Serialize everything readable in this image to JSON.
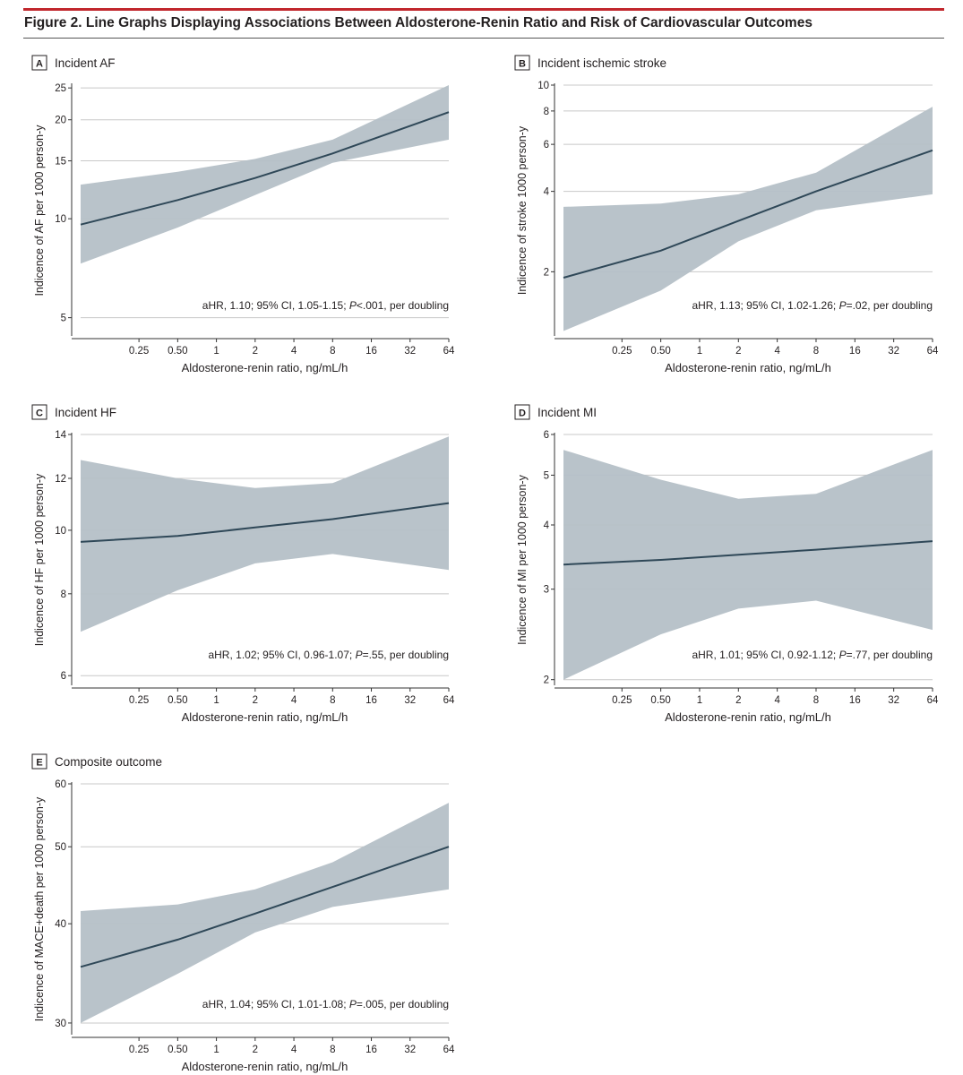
{
  "figure": {
    "title": "Figure 2. Line Graphs Displaying Associations Between Aldosterone-Renin Ratio and Risk of Cardiovascular Outcomes"
  },
  "colors": {
    "line": "#2f4858",
    "band": "#b5c0c7",
    "grid": "#c8c8c8",
    "accent_rule": "#c1272d"
  },
  "chart_data": [
    {
      "type": "line",
      "panel_letter": "A",
      "title": "Incident AF",
      "xlabel": "Aldosterone-renin ratio, ng/mL/h",
      "ylabel": "Indicence of AF per 1000 person-y",
      "x_scale": "log2",
      "y_scale": "log",
      "x_ticks": [
        0.25,
        0.5,
        1,
        2,
        4,
        8,
        16,
        32,
        64
      ],
      "x_tick_labels": [
        "0.25",
        "0.50",
        "1",
        "2",
        "4",
        "8",
        "16",
        "32",
        "64"
      ],
      "xlim": [
        0.088,
        64
      ],
      "y_ticks": [
        5,
        10,
        15,
        20,
        25
      ],
      "y_tick_labels": [
        "5",
        "10",
        "15",
        "20",
        "25"
      ],
      "ylim": [
        4.4,
        25.5
      ],
      "annotation": {
        "pre": "aHR, 1.10; 95% CI, 1.05-1.15; ",
        "p": "P",
        "post": "<.001, per doubling"
      },
      "x": [
        0.088,
        0.5,
        2,
        8,
        64
      ],
      "estimate": [
        9.6,
        11.4,
        13.3,
        15.8,
        21.1
      ],
      "ci_lower": [
        7.3,
        9.4,
        11.8,
        14.8,
        17.4
      ],
      "ci_upper": [
        12.7,
        13.9,
        15.2,
        17.4,
        25.5
      ]
    },
    {
      "type": "line",
      "panel_letter": "B",
      "title": "Incident ischemic stroke",
      "xlabel": "Aldosterone-renin ratio, ng/mL/h",
      "ylabel": "Indicence of stroke 1000 person-y",
      "x_scale": "log2",
      "y_scale": "log",
      "x_ticks": [
        0.25,
        0.5,
        1,
        2,
        4,
        8,
        16,
        32,
        64
      ],
      "x_tick_labels": [
        "0.25",
        "0.50",
        "1",
        "2",
        "4",
        "8",
        "16",
        "32",
        "64"
      ],
      "xlim": [
        0.088,
        64
      ],
      "y_ticks": [
        2,
        4,
        6,
        8,
        10
      ],
      "y_tick_labels": [
        "2",
        "4",
        "6",
        "8",
        "10"
      ],
      "ylim": [
        1.15,
        10
      ],
      "annotation": {
        "pre": "aHR, 1.13; 95% CI, 1.02-1.26; ",
        "p": "P",
        "post": "=.02, per doubling"
      },
      "x": [
        0.088,
        0.5,
        2,
        8,
        64
      ],
      "estimate": [
        1.9,
        2.4,
        3.1,
        4.0,
        5.7
      ],
      "ci_lower": [
        1.2,
        1.7,
        2.6,
        3.4,
        3.9
      ],
      "ci_upper": [
        3.5,
        3.6,
        3.9,
        4.7,
        8.3
      ]
    },
    {
      "type": "line",
      "panel_letter": "C",
      "title": "Incident HF",
      "xlabel": "Aldosterone-renin ratio, ng/mL/h",
      "ylabel": "Indicence of HF per 1000 person-y",
      "x_scale": "log2",
      "y_scale": "log",
      "x_ticks": [
        0.25,
        0.5,
        1,
        2,
        4,
        8,
        16,
        32,
        64
      ],
      "x_tick_labels": [
        "0.25",
        "0.50",
        "1",
        "2",
        "4",
        "8",
        "16",
        "32",
        "64"
      ],
      "xlim": [
        0.088,
        64
      ],
      "y_ticks": [
        6,
        8,
        10,
        12,
        14
      ],
      "y_tick_labels": [
        "6",
        "8",
        "10",
        "12",
        "14"
      ],
      "ylim": [
        5.8,
        14
      ],
      "annotation": {
        "pre": "aHR, 1.02; 95% CI, 0.96-1.07; ",
        "p": "P",
        "post": "=.55, per doubling"
      },
      "x": [
        0.088,
        0.5,
        2,
        8,
        64
      ],
      "estimate": [
        9.6,
        9.8,
        10.1,
        10.4,
        11.0
      ],
      "ci_lower": [
        7.0,
        8.1,
        8.9,
        9.2,
        8.7
      ],
      "ci_upper": [
        12.8,
        12.0,
        11.6,
        11.8,
        13.9
      ]
    },
    {
      "type": "line",
      "panel_letter": "D",
      "title": "Incident MI",
      "xlabel": "Aldosterone-renin ratio, ng/mL/h",
      "ylabel": "Indicence of MI per 1000 person-y",
      "x_scale": "log2",
      "y_scale": "log",
      "x_ticks": [
        0.25,
        0.5,
        1,
        2,
        4,
        8,
        16,
        32,
        64
      ],
      "x_tick_labels": [
        "0.25",
        "0.50",
        "1",
        "2",
        "4",
        "8",
        "16",
        "32",
        "64"
      ],
      "xlim": [
        0.088,
        64
      ],
      "y_ticks": [
        2,
        3,
        4,
        5,
        6
      ],
      "y_tick_labels": [
        "2",
        "3",
        "4",
        "5",
        "6"
      ],
      "ylim": [
        1.95,
        6
      ],
      "annotation": {
        "pre": "aHR, 1.01; 95% CI, 0.92-1.12; ",
        "p": "P",
        "post": "=.77, per doubling"
      },
      "x": [
        0.088,
        0.5,
        2,
        8,
        64
      ],
      "estimate": [
        3.35,
        3.42,
        3.5,
        3.58,
        3.72
      ],
      "ci_lower": [
        2.0,
        2.45,
        2.75,
        2.85,
        2.5
      ],
      "ci_upper": [
        5.6,
        4.9,
        4.5,
        4.6,
        5.6
      ]
    },
    {
      "type": "line",
      "panel_letter": "E",
      "title": "Composite outcome",
      "xlabel": "Aldosterone-renin ratio, ng/mL/h",
      "ylabel": "Indicence of MACE+death per 1000 person-y",
      "x_scale": "log2",
      "y_scale": "log",
      "x_ticks": [
        0.25,
        0.5,
        1,
        2,
        4,
        8,
        16,
        32,
        64
      ],
      "x_tick_labels": [
        "0.25",
        "0.50",
        "1",
        "2",
        "4",
        "8",
        "16",
        "32",
        "64"
      ],
      "xlim": [
        0.088,
        64
      ],
      "y_ticks": [
        30,
        40,
        50,
        60
      ],
      "y_tick_labels": [
        "30",
        "40",
        "50",
        "60"
      ],
      "ylim": [
        29,
        60
      ],
      "annotation": {
        "pre": "aHR, 1.04; 95% CI, 1.01-1.08; ",
        "p": "P",
        "post": "=.005, per doubling"
      },
      "x": [
        0.088,
        0.5,
        2,
        8,
        64
      ],
      "estimate": [
        35.3,
        38.2,
        41.2,
        44.5,
        50.0
      ],
      "ci_lower": [
        30.0,
        34.6,
        39.0,
        42.0,
        44.2
      ],
      "ci_upper": [
        41.5,
        42.3,
        44.2,
        47.8,
        56.8
      ]
    }
  ]
}
